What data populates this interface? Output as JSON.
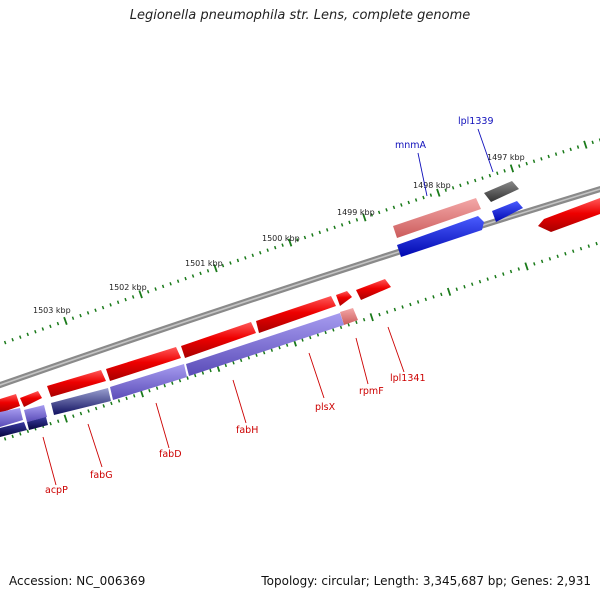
{
  "title": "Legionella pneumophila str. Lens, complete genome",
  "footer": {
    "accession": "Accession: NC_006369",
    "summary": "Topology: circular; Length: 3,345,687 bp; Genes: 2,931"
  },
  "colors": {
    "forward_gene": "#e00000",
    "forward_highlight": "#e87878",
    "reverse_gene_blue": "#0010e0",
    "reverse_gene_purple": "#7a6cd0",
    "reverse_gene_navy": "#101070",
    "dark_gene": "#555555",
    "backbone": "#8a8a8a",
    "tick": "#1a7a1a",
    "label_red": "#cc0000",
    "label_blue": "#1010bb"
  },
  "tick_labels": [
    "1497 kbp",
    "1498 kbp",
    "1499 kbp",
    "1500 kbp",
    "1501 kbp",
    "1502 kbp",
    "1503 kbp"
  ],
  "gene_labels": {
    "forward": [
      "mnmA",
      "lpl1339"
    ],
    "reverse": [
      "acpP",
      "fabG",
      "fabD",
      "fabH",
      "plsX",
      "rpmF",
      "lpl1341"
    ]
  }
}
